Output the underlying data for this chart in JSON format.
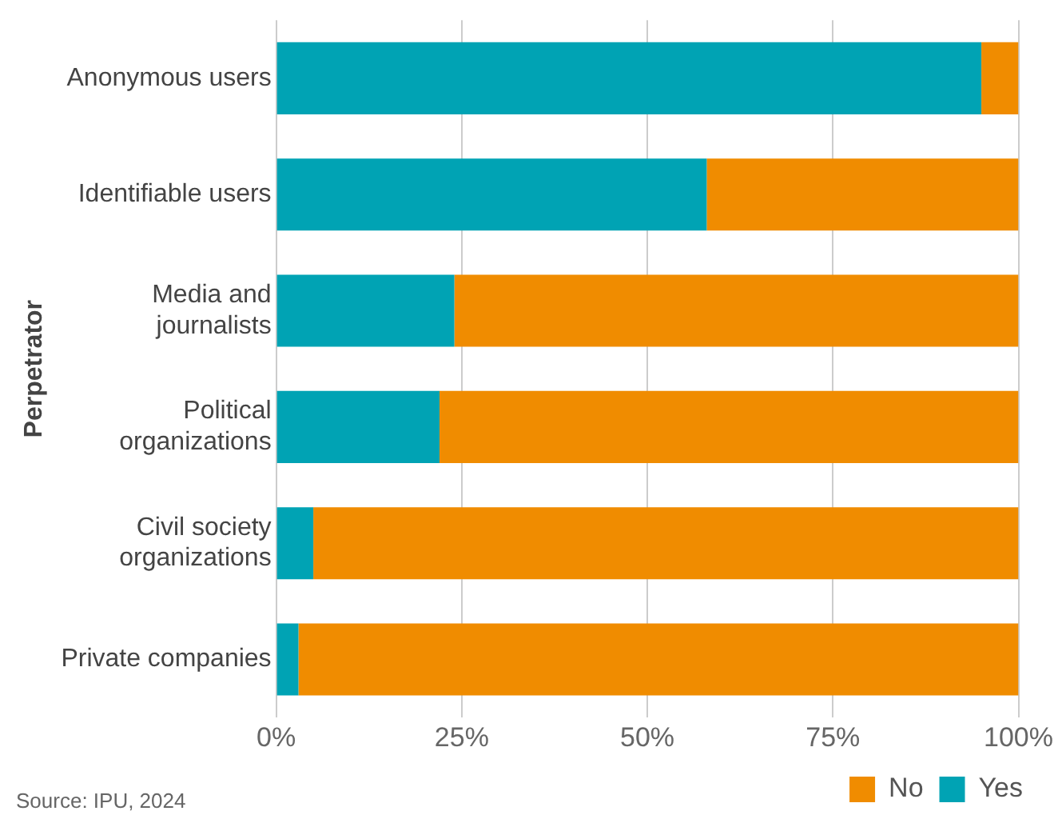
{
  "chart_data": {
    "type": "bar",
    "orientation": "horizontal",
    "stacked": true,
    "ylabel": "Perpetrator",
    "categories": [
      "Anonymous users",
      "Identifiable users",
      "Media and journalists",
      "Political organizations",
      "Civil society organizations",
      "Private companies"
    ],
    "series": [
      {
        "name": "Yes",
        "color": "#00a3b4",
        "values": [
          95,
          58,
          24,
          22,
          5,
          3
        ]
      },
      {
        "name": "No",
        "color": "#f08c00",
        "values": [
          5,
          42,
          76,
          78,
          95,
          97
        ]
      }
    ],
    "xlim": [
      0,
      100
    ],
    "xticks": [
      {
        "value": 0,
        "label": "0%"
      },
      {
        "value": 25,
        "label": "25%"
      },
      {
        "value": 50,
        "label": "50%"
      },
      {
        "value": 75,
        "label": "75%"
      },
      {
        "value": 100,
        "label": "100%"
      }
    ],
    "grid": "x",
    "legend": "bottom right",
    "annotations": [
      "Source: IPU, 2024"
    ]
  }
}
